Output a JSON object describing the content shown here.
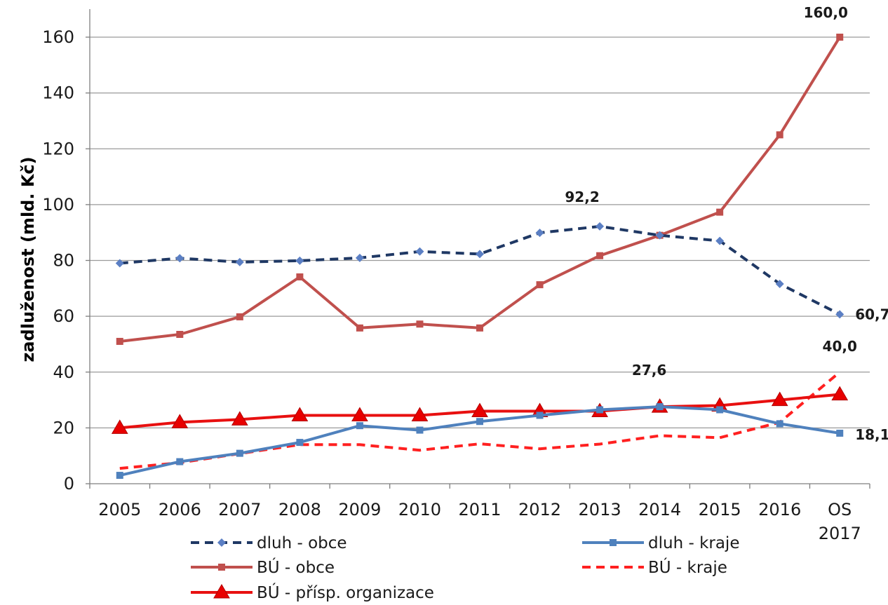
{
  "chart_data": {
    "type": "line",
    "categories": [
      "2005",
      "2006",
      "2007",
      "2008",
      "2009",
      "2010",
      "2011",
      "2012",
      "2013",
      "2014",
      "2015",
      "2016",
      "OS\n2017"
    ],
    "ylabel": "zadluženost (mld. Kč)",
    "ylim": [
      0,
      160
    ],
    "yticks": [
      0,
      20,
      40,
      60,
      80,
      100,
      120,
      140,
      160
    ],
    "grid": true,
    "legend_position": "bottom",
    "series": [
      {
        "name": "dluh - obce",
        "color": "#1f3864",
        "dash": true,
        "marker": "diamond",
        "markerColor": "#5b7fc4",
        "values": [
          79.0,
          80.8,
          79.4,
          79.9,
          80.9,
          83.2,
          82.3,
          89.9,
          92.2,
          89.0,
          87.0,
          71.6,
          60.7
        ]
      },
      {
        "name": "dluh - kraje",
        "color": "#4f81bd",
        "dash": false,
        "marker": "square",
        "markerColor": "#4f81bd",
        "values": [
          3.0,
          7.9,
          10.9,
          14.8,
          20.8,
          19.2,
          22.3,
          24.5,
          26.5,
          27.6,
          26.5,
          21.5,
          18.1
        ]
      },
      {
        "name": "BÚ - obce",
        "color": "#c0504d",
        "dash": false,
        "marker": "square",
        "markerColor": "#c0504d",
        "values": [
          51.0,
          53.5,
          59.8,
          74.1,
          55.8,
          57.2,
          55.8,
          71.3,
          81.7,
          89.0,
          97.3,
          125.0,
          160.0
        ]
      },
      {
        "name": "BÚ - kraje",
        "color": "#ff2020",
        "dash": true,
        "marker": "none",
        "markerColor": "#ff2020",
        "values": [
          5.5,
          7.5,
          10.8,
          14.0,
          14.0,
          12.0,
          14.3,
          12.5,
          14.2,
          17.2,
          16.5,
          22.0,
          40.0
        ]
      },
      {
        "name": "BÚ - přísp. organizace",
        "color": "#e81010",
        "dash": false,
        "marker": "triangle",
        "markerColor": "#e80000",
        "values": [
          20.0,
          22.0,
          23.0,
          24.5,
          24.5,
          24.5,
          26.0,
          26.0,
          26.0,
          27.6,
          28.0,
          30.0,
          32.0
        ]
      }
    ],
    "annotations": [
      {
        "text": "160,0",
        "series": 2,
        "index": 12
      },
      {
        "text": "92,2",
        "series": 0,
        "index": 8
      },
      {
        "text": "60,7",
        "series": 0,
        "index": 12
      },
      {
        "text": "40,0",
        "series": 3,
        "index": 12
      },
      {
        "text": "27,6",
        "series": 1,
        "index": 9
      },
      {
        "text": "18,1",
        "series": 1,
        "index": 12
      }
    ]
  }
}
